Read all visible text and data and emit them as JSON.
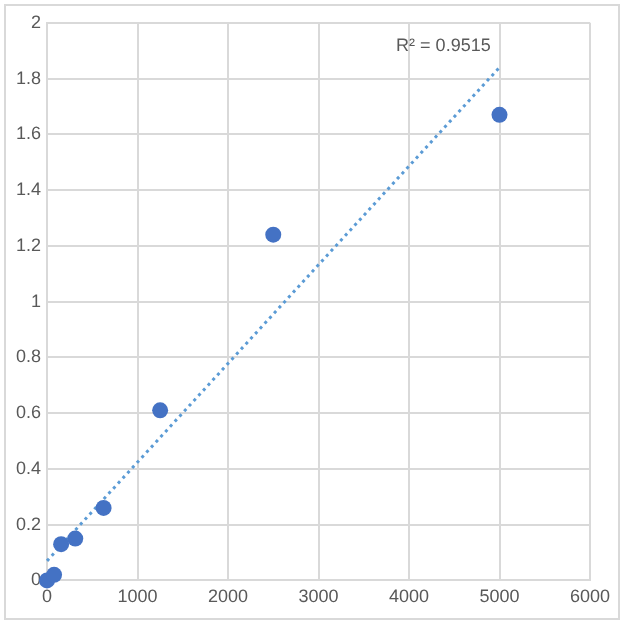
{
  "chart_data": {
    "type": "scatter",
    "series": [
      {
        "color": "#4472c4",
        "x": [
          0,
          78,
          156,
          312,
          625,
          1250,
          2500,
          5000
        ],
        "values": [
          0,
          0.02,
          0.13,
          0.15,
          0.26,
          0.61,
          1.24,
          1.67
        ]
      },
      {
        "type": "line",
        "color": "#5b9bd5",
        "x": [
          0,
          5000
        ],
        "values": [
          0.07,
          1.84
        ],
        "line_style": "dotted",
        "marker": "none"
      }
    ],
    "xlim": [
      0,
      6000
    ],
    "xticks": [
      0,
      1000,
      2000,
      3000,
      4000,
      5000,
      6000
    ],
    "ylim": [
      0,
      2
    ],
    "yticks": [
      0,
      0.2,
      0.4,
      0.6,
      0.8,
      1,
      1.2,
      1.4,
      1.6,
      1.8,
      2
    ],
    "grid": true,
    "legend": false,
    "marker": "circle",
    "annotations": [
      "R² = 0.9515"
    ]
  }
}
